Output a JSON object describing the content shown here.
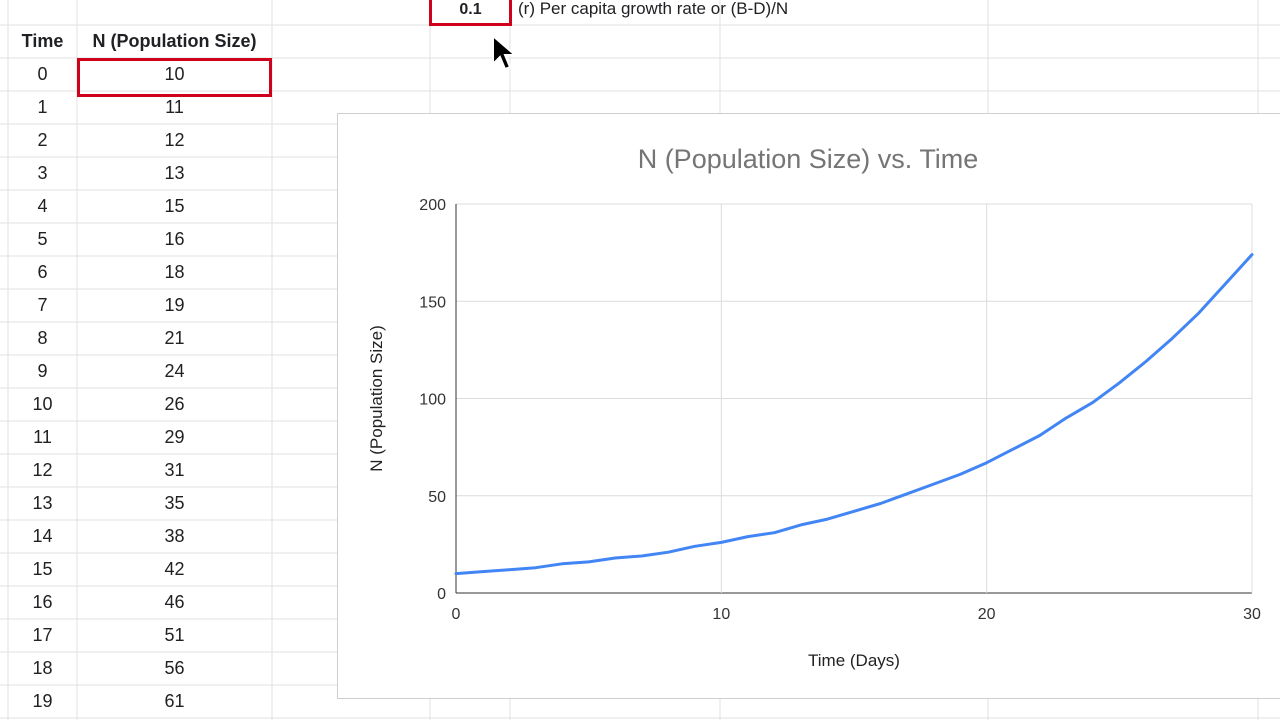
{
  "rate": {
    "value": "0.1",
    "label": "(r) Per capita growth rate or (B-D)/N"
  },
  "table": {
    "headers": [
      "Time",
      "N (Population Size)"
    ],
    "rows": [
      [
        "0",
        "10"
      ],
      [
        "1",
        "11"
      ],
      [
        "2",
        "12"
      ],
      [
        "3",
        "13"
      ],
      [
        "4",
        "15"
      ],
      [
        "5",
        "16"
      ],
      [
        "6",
        "18"
      ],
      [
        "7",
        "19"
      ],
      [
        "8",
        "21"
      ],
      [
        "9",
        "24"
      ],
      [
        "10",
        "26"
      ],
      [
        "11",
        "29"
      ],
      [
        "12",
        "31"
      ],
      [
        "13",
        "35"
      ],
      [
        "14",
        "38"
      ],
      [
        "15",
        "42"
      ],
      [
        "16",
        "46"
      ],
      [
        "17",
        "51"
      ],
      [
        "18",
        "56"
      ],
      [
        "19",
        "61"
      ]
    ]
  },
  "chart_data": {
    "type": "line",
    "title": "N (Population Size) vs. Time",
    "xlabel": "Time (Days)",
    "ylabel": "N (Population Size)",
    "xlim": [
      0,
      30
    ],
    "ylim": [
      0,
      200
    ],
    "xticks": [
      0,
      10,
      20,
      30
    ],
    "yticks": [
      0,
      50,
      100,
      150,
      200
    ],
    "grid": true,
    "line_color": "#4285f4",
    "x": [
      0,
      1,
      2,
      3,
      4,
      5,
      6,
      7,
      8,
      9,
      10,
      11,
      12,
      13,
      14,
      15,
      16,
      17,
      18,
      19,
      20,
      21,
      22,
      23,
      24,
      25,
      26,
      27,
      28,
      29,
      30
    ],
    "y": [
      10,
      11,
      12,
      13,
      15,
      16,
      18,
      19,
      21,
      24,
      26,
      29,
      31,
      35,
      38,
      42,
      46,
      51,
      56,
      61,
      67,
      74,
      81,
      90,
      98,
      108,
      119,
      131,
      144,
      159,
      174
    ]
  }
}
